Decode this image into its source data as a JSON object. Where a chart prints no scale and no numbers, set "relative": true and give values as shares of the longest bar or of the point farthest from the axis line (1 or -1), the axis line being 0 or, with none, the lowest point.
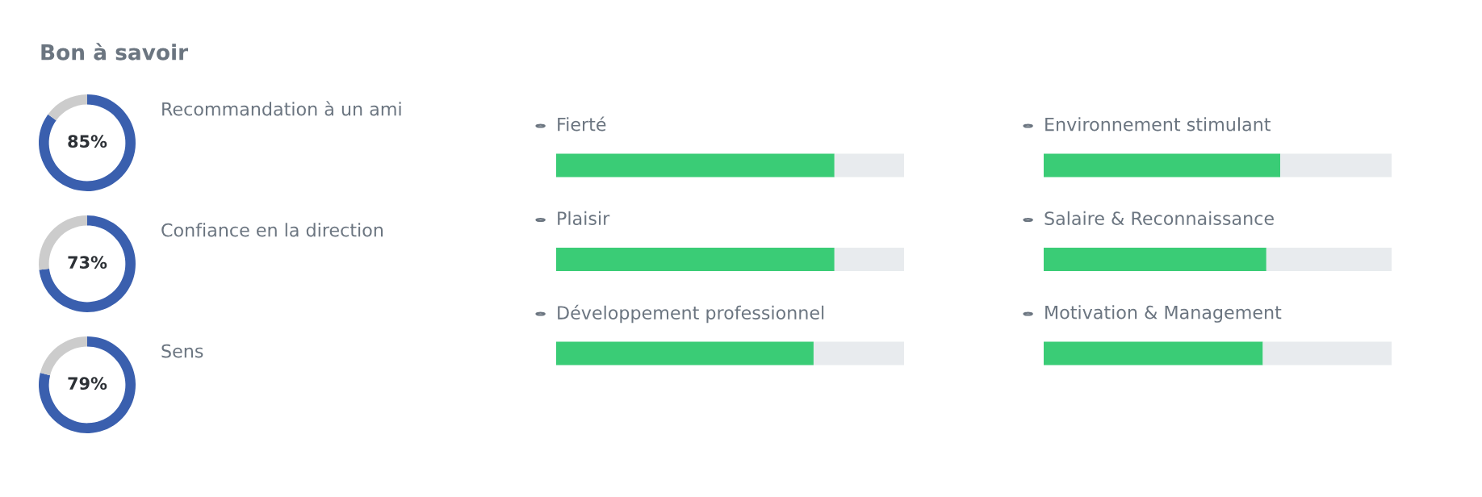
{
  "chart_data": [
    {
      "type": "other",
      "title": "Bon à savoir"
    },
    {
      "type": "donut",
      "title": "Recommandation à un ami",
      "categories": [
        null,
        null
      ],
      "values": [
        85,
        15
      ],
      "colors": [
        "#3a5fae",
        "#cccccc"
      ],
      "value_labels": [
        "85%",
        null
      ]
    },
    {
      "type": "donut",
      "title": "Confiance en la direction",
      "categories": [
        null,
        null
      ],
      "values": [
        73,
        27
      ],
      "colors": [
        "#3a5fae",
        "#cccccc"
      ],
      "value_labels": [
        "73%",
        null
      ]
    },
    {
      "type": "donut",
      "title": "Sens",
      "categories": [
        null,
        null
      ],
      "values": [
        79,
        21
      ],
      "colors": [
        "#3a5fae",
        "#cccccc"
      ],
      "value_labels": [
        "79%",
        null
      ]
    },
    {
      "type": "bar",
      "orientation": "horizontal",
      "relative": true,
      "stacked": true,
      "categories": [
        "Fierté",
        "Plaisir",
        "Développement professionnel"
      ],
      "series": [
        {
          "color": "#3acc76",
          "values": [
            0.8,
            0.8,
            0.74
          ]
        },
        {
          "color": "#e8ebee",
          "values": [
            0.2,
            0.2,
            0.26
          ]
        }
      ]
    },
    {
      "type": "bar",
      "orientation": "horizontal",
      "relative": true,
      "stacked": true,
      "categories": [
        "Environnement stimulant",
        "Salaire & Reconnaissance",
        "Motivation & Management"
      ],
      "series": [
        {
          "color": "#3acc76",
          "values": [
            0.68,
            0.64,
            0.63
          ]
        },
        {
          "color": "#e8ebee",
          "values": [
            0.32,
            0.36,
            0.37
          ]
        }
      ]
    }
  ]
}
